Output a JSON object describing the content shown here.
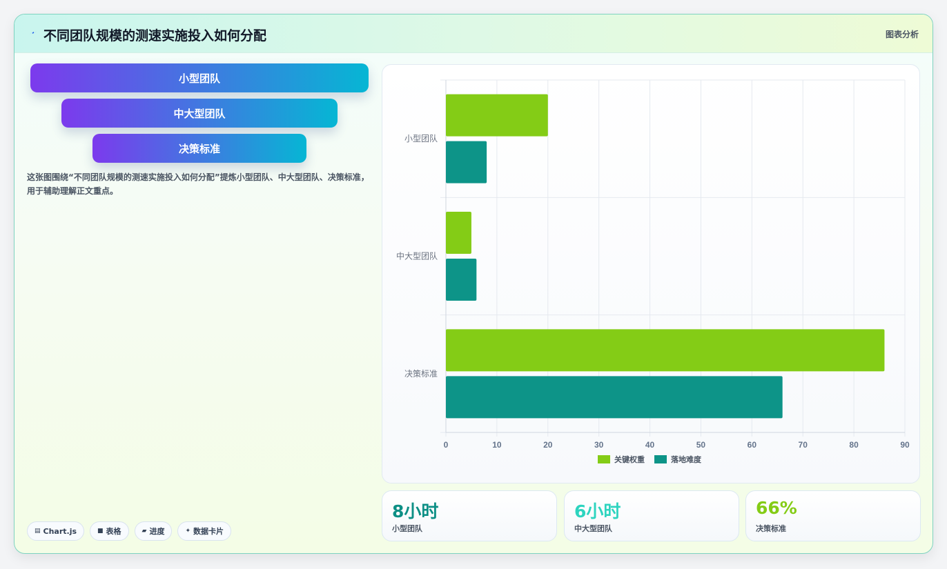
{
  "header": {
    "title": "不同团队规模的测速实施投入如何分配",
    "tag": "图表分析"
  },
  "pills": [
    "小型团队",
    "中大型团队",
    "决策标准"
  ],
  "description": "这张图围绕“不同团队规模的测速实施投入如何分配”提炼小型团队、中大型团队、决策标准，用于辅助理解正文重点。",
  "chips": [
    {
      "icon": "chart-icon",
      "glyph": "▤",
      "label": "Chart.js"
    },
    {
      "icon": "table-icon",
      "glyph": "■",
      "label": "表格"
    },
    {
      "icon": "progress-icon",
      "glyph": "▰",
      "label": "进度"
    },
    {
      "icon": "sparkle-icon",
      "glyph": "✦",
      "label": "数据卡片"
    }
  ],
  "stats": [
    {
      "value": "8小时",
      "label": "小型团队",
      "color": "#0d8f85"
    },
    {
      "value": "6小时",
      "label": "中大型团队",
      "color": "#2dd4bf"
    },
    {
      "value": "66%",
      "label": "决策标准",
      "color": "#84cc16"
    }
  ],
  "colors": {
    "series_a": "#84cc16",
    "series_b": "#0d9488",
    "accent_start": "#7c3aed",
    "accent_end": "#06b6d4"
  },
  "chart_data": {
    "type": "bar",
    "orientation": "horizontal",
    "categories": [
      "小型团队",
      "中大型团队",
      "决策标准"
    ],
    "series": [
      {
        "name": "关键权重",
        "values": [
          20,
          5,
          86
        ]
      },
      {
        "name": "落地难度",
        "values": [
          8,
          6,
          66
        ]
      }
    ],
    "xlim": [
      0,
      90
    ],
    "xticks": [
      0,
      10,
      20,
      30,
      40,
      50,
      60,
      70,
      80,
      90
    ],
    "grid": true,
    "legend": "bottom"
  }
}
